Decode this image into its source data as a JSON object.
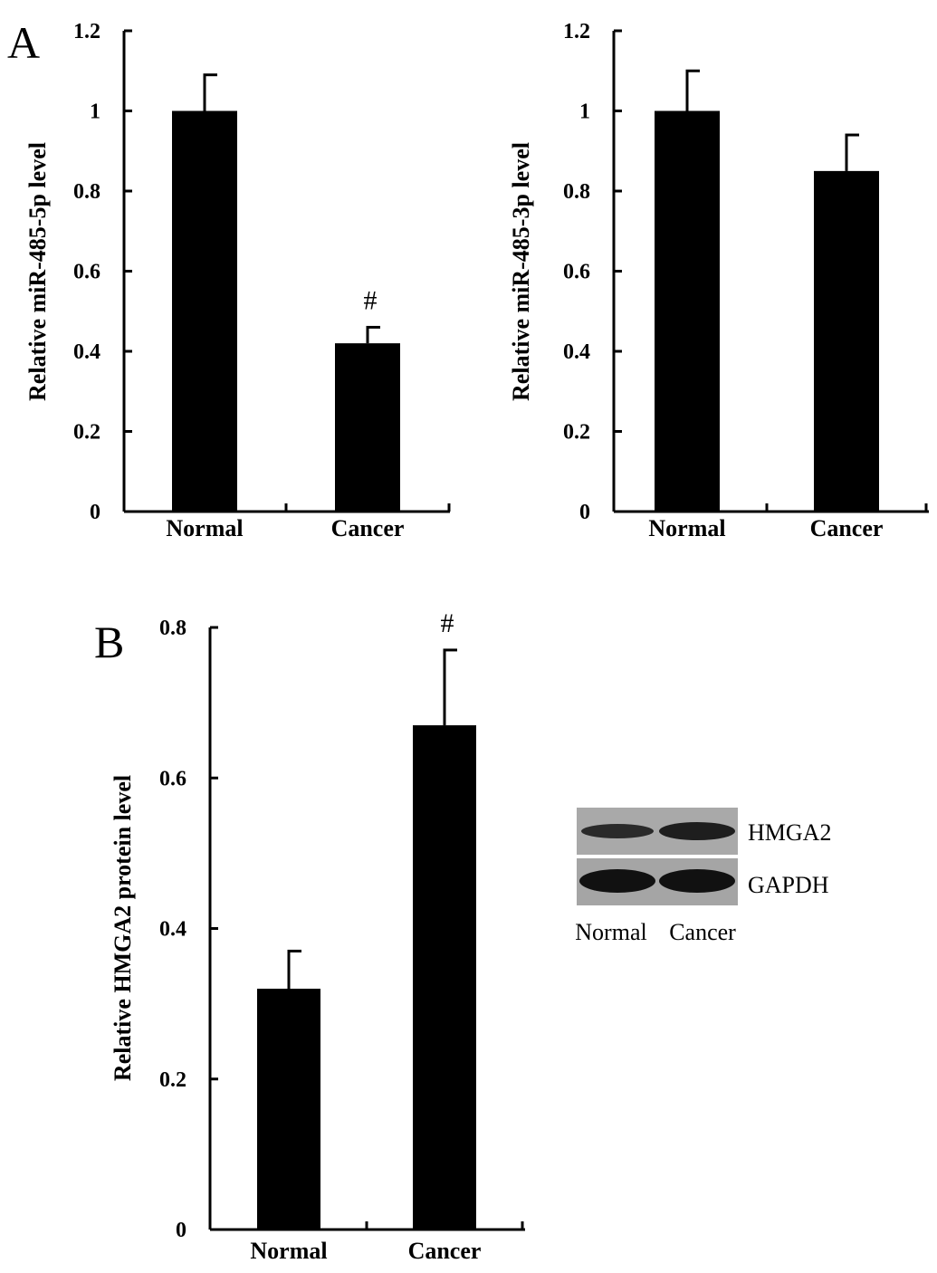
{
  "panels": {
    "a": "A",
    "b": "B"
  },
  "chart_data": [
    {
      "type": "bar",
      "categories": [
        "Normal",
        "Cancer"
      ],
      "values": [
        1.0,
        0.42
      ],
      "errors": [
        0.09,
        0.04
      ],
      "annotations": [
        "",
        "#"
      ],
      "ylabel": "Relative miR-485-5p level",
      "ylim": [
        0,
        1.2
      ],
      "yticks": [
        "0",
        "0.2",
        "0.4",
        "0.6",
        "0.8",
        "1",
        "1.2"
      ],
      "ytick_values": [
        0,
        0.2,
        0.4,
        0.6,
        0.8,
        1.0,
        1.2
      ],
      "bar_color": "#000000"
    },
    {
      "type": "bar",
      "categories": [
        "Normal",
        "Cancer"
      ],
      "values": [
        1.0,
        0.85
      ],
      "errors": [
        0.1,
        0.09
      ],
      "annotations": [
        "",
        ""
      ],
      "ylabel": "Relative miR-485-3p level",
      "ylim": [
        0,
        1.2
      ],
      "yticks": [
        "0",
        "0.2",
        "0.4",
        "0.6",
        "0.8",
        "1",
        "1.2"
      ],
      "ytick_values": [
        0,
        0.2,
        0.4,
        0.6,
        0.8,
        1.0,
        1.2
      ],
      "bar_color": "#000000"
    },
    {
      "type": "bar",
      "categories": [
        "Normal",
        "Cancer"
      ],
      "values": [
        0.32,
        0.67
      ],
      "errors": [
        0.05,
        0.1
      ],
      "annotations": [
        "",
        "#"
      ],
      "ylabel": "Relative HMGA2 protein level",
      "ylim": [
        0,
        0.8
      ],
      "yticks": [
        "0",
        "0.2",
        "0.4",
        "0.6",
        "0.8"
      ],
      "ytick_values": [
        0,
        0.2,
        0.4,
        0.6,
        0.8
      ],
      "bar_color": "#000000"
    }
  ],
  "blot": {
    "rows": [
      "HMGA2",
      "GAPDH"
    ],
    "lanes": [
      "Normal",
      "Cancer"
    ]
  }
}
